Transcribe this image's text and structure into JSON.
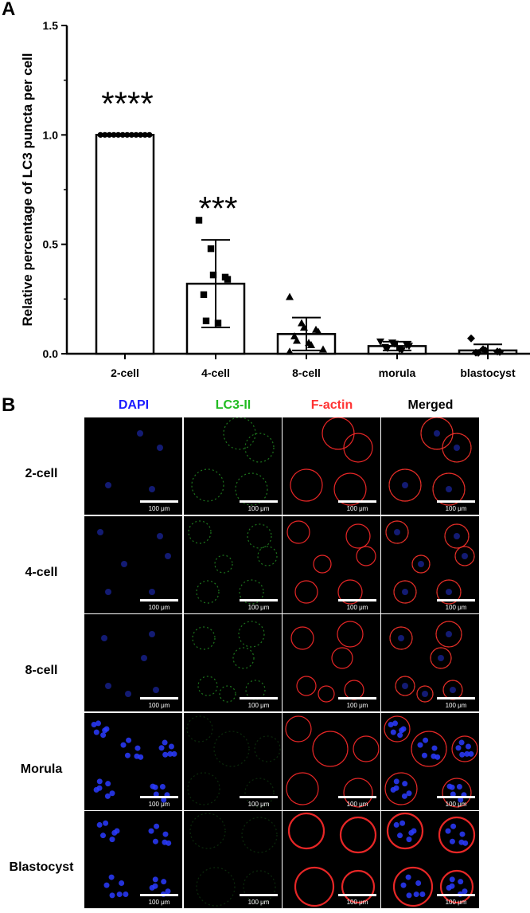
{
  "panel_a_label": "A",
  "panel_b_label": "B",
  "chart_data": {
    "type": "bar",
    "categories": [
      "2-cell",
      "4-cell",
      "8-cell",
      "morula",
      "blastocyst"
    ],
    "values": [
      1.0,
      0.32,
      0.09,
      0.035,
      0.015
    ],
    "error_sd": [
      0.0,
      0.2,
      0.075,
      0.02,
      0.028
    ],
    "points": [
      [
        1.0,
        1.0,
        1.0,
        1.0,
        1.0,
        1.0,
        1.0,
        1.0,
        1.0,
        1.0,
        1.0,
        1.0
      ],
      [
        0.61,
        0.48,
        0.36,
        0.35,
        0.34,
        0.27,
        0.15,
        0.14
      ],
      [
        0.26,
        0.14,
        0.12,
        0.11,
        0.1,
        0.08,
        0.06,
        0.05,
        0.04,
        0.02,
        0.01
      ],
      [
        0.055,
        0.05,
        0.045,
        0.04,
        0.035,
        0.03,
        0.025,
        0.02,
        0.015
      ],
      [
        0.07,
        0.02,
        0.015,
        0.01,
        0.008,
        0.005,
        0.004
      ]
    ],
    "markers": [
      "circle",
      "square",
      "triangle-up",
      "triangle-down",
      "diamond"
    ],
    "significance": [
      "****",
      "***",
      "",
      "",
      ""
    ],
    "ylabel": "Relative percentage of LC3 puncta per cell",
    "xlabel": "",
    "ylim": [
      0,
      1.5
    ],
    "yticks": [
      "0.0",
      "0.5",
      "1.0",
      "1.5"
    ]
  },
  "micrograph_grid": {
    "columns": [
      {
        "label": "DAPI",
        "color": "#1a1aff"
      },
      {
        "label": "LC3-II",
        "color": "#22bb22"
      },
      {
        "label": "F-actin",
        "color": "#ff3333"
      },
      {
        "label": "Merged",
        "color": "#000000"
      }
    ],
    "rows": [
      "2-cell",
      "4-cell",
      "8-cell",
      "Morula",
      "Blastocyst"
    ],
    "scale_label": "100 μm"
  }
}
